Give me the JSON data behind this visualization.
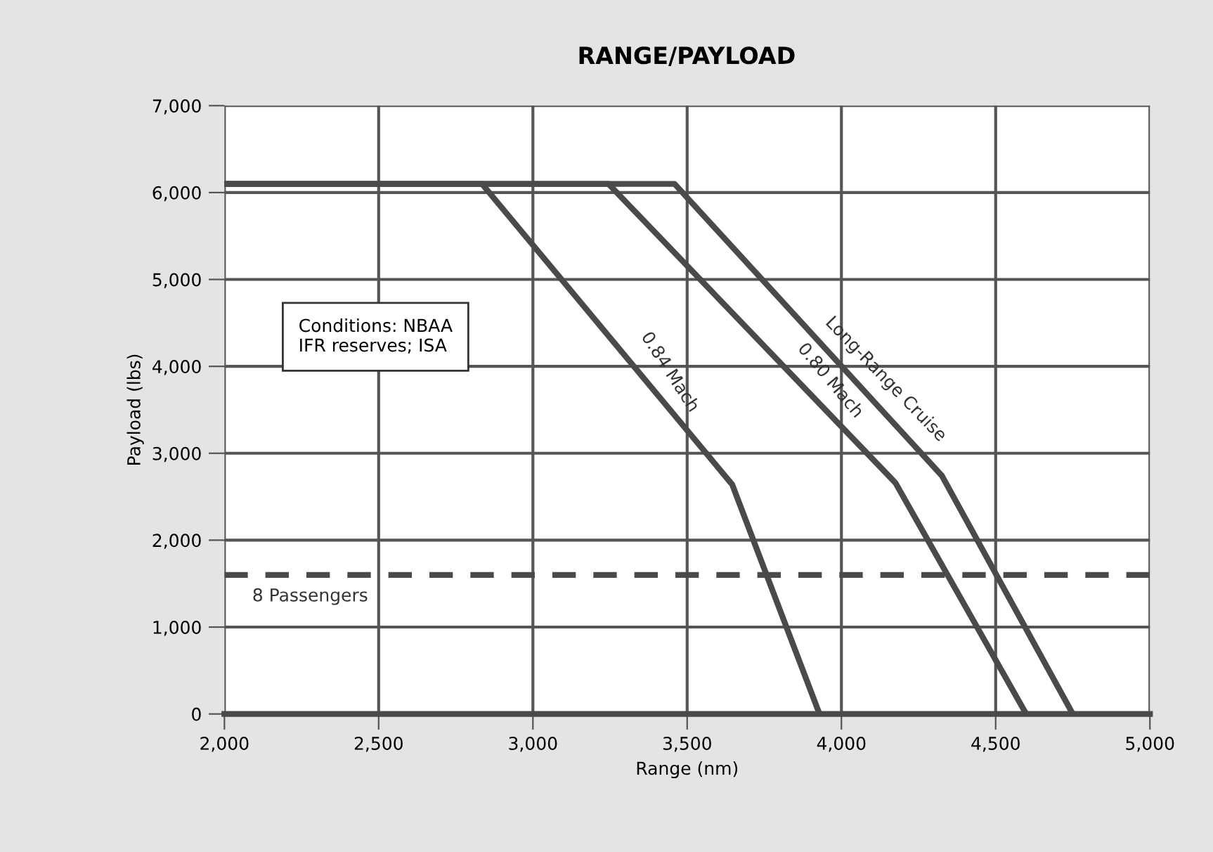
{
  "chart_data": {
    "type": "line",
    "title": "RANGE/PAYLOAD",
    "xlabel": "Range (nm)",
    "ylabel": "Payload (lbs)",
    "xlim": [
      2000,
      5000
    ],
    "xticks": [
      {
        "value": 2000,
        "label": "2,000"
      },
      {
        "value": 2500,
        "label": "2,500"
      },
      {
        "value": 3000,
        "label": "3,000"
      },
      {
        "value": 3500,
        "label": "3,500"
      },
      {
        "value": 4000,
        "label": "4,000"
      },
      {
        "value": 4500,
        "label": "4,500"
      },
      {
        "value": 5000,
        "label": "5,000"
      }
    ],
    "ylim": [
      0,
      7000
    ],
    "yticks": [
      {
        "value": 0,
        "label": "0"
      },
      {
        "value": 1000,
        "label": "1,000"
      },
      {
        "value": 2000,
        "label": "2,000"
      },
      {
        "value": 3000,
        "label": "3,000"
      },
      {
        "value": 4000,
        "label": "4,000"
      },
      {
        "value": 5000,
        "label": "5,000"
      },
      {
        "value": 6000,
        "label": "6,000"
      },
      {
        "value": 7000,
        "label": "7,000"
      }
    ],
    "grid": true,
    "legend": false,
    "line_style": "solid",
    "series": [
      {
        "color": "#4a4a4a",
        "x": [
          2000,
          2835,
          3646,
          3929
        ],
        "values": [
          6100,
          6100,
          2640,
          0
        ]
      },
      {
        "color": "#4a4a4a",
        "x": [
          2000,
          3245,
          4175,
          4599
        ],
        "values": [
          6100,
          6100,
          2660,
          0
        ]
      },
      {
        "color": "#4a4a4a",
        "x": [
          2000,
          3459,
          4326,
          4750
        ],
        "values": [
          6100,
          6100,
          2740,
          0
        ]
      }
    ],
    "ref_lines": [
      {
        "axis": "y",
        "value": 1600,
        "label": "8 Passengers",
        "color": "#4a4a4a",
        "line_style": "dashed"
      }
    ],
    "annotations": [
      {
        "text": "0.84 Mach",
        "x": 3380,
        "y": 3775
      },
      {
        "text": "0.80 Mach",
        "x": 3900,
        "y": 3677
      },
      {
        "text": "Long-Range Cruise",
        "x": 4080,
        "y": 3693
      },
      "Conditions: NBAA\nIFR reserves; ISA"
    ]
  }
}
